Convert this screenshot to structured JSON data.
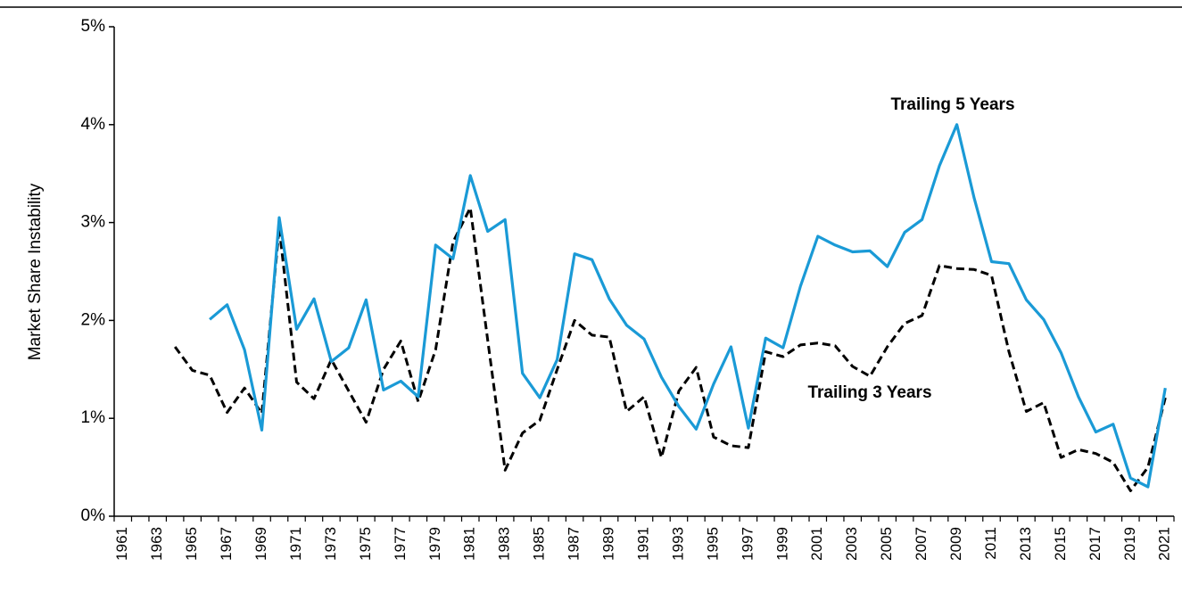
{
  "chart_data": {
    "type": "line",
    "y_label": "Market Share Instability",
    "categories": [
      "1961",
      null,
      "1963",
      null,
      "1965",
      null,
      "1967",
      null,
      "1969",
      null,
      "1971",
      null,
      "1973",
      null,
      "1975",
      null,
      "1977",
      null,
      "1979",
      null,
      "1981",
      null,
      "1983",
      null,
      "1985",
      null,
      "1987",
      null,
      "1989",
      null,
      "1991",
      null,
      "1993",
      null,
      "1995",
      null,
      "1997",
      null,
      "1999",
      null,
      "2001",
      null,
      "2003",
      null,
      "2005",
      null,
      "2007",
      null,
      "2009",
      null,
      "2011",
      null,
      "2013",
      null,
      "2015",
      null,
      "2017",
      null,
      "2019",
      null,
      "2021"
    ],
    "series": [
      {
        "name": "Trailing 5 Years",
        "color": "#1a9ad6",
        "dashed": false,
        "values": [
          null,
          null,
          null,
          null,
          null,
          2.01,
          2.16,
          1.7,
          0.88,
          3.05,
          1.91,
          2.22,
          1.58,
          1.72,
          2.21,
          1.29,
          1.38,
          1.22,
          2.77,
          2.63,
          3.48,
          2.91,
          3.03,
          1.46,
          1.21,
          1.6,
          2.68,
          2.62,
          2.22,
          1.95,
          1.81,
          1.42,
          1.12,
          0.89,
          1.35,
          1.73,
          0.9,
          1.82,
          1.72,
          2.35,
          2.86,
          2.77,
          2.7,
          2.71,
          2.55,
          2.9,
          3.03,
          3.58,
          4.0,
          3.25,
          2.6,
          2.58,
          2.21,
          2.01,
          1.67,
          1.22,
          0.86,
          0.94,
          0.39,
          0.3,
          1.31
        ]
      },
      {
        "name": "Trailing 3 Years",
        "color": "#000000",
        "dashed": true,
        "values": [
          null,
          null,
          null,
          1.73,
          1.49,
          1.44,
          1.06,
          1.31,
          1.05,
          2.95,
          1.37,
          1.2,
          1.6,
          1.28,
          0.96,
          1.5,
          1.79,
          1.17,
          1.7,
          2.8,
          3.15,
          1.8,
          0.47,
          0.85,
          0.98,
          1.5,
          2.0,
          1.85,
          1.83,
          1.07,
          1.22,
          0.6,
          1.28,
          1.52,
          0.81,
          0.72,
          0.7,
          1.68,
          1.63,
          1.75,
          1.77,
          1.74,
          1.53,
          1.43,
          1.73,
          1.97,
          2.05,
          2.56,
          2.53,
          2.52,
          2.46,
          1.68,
          1.07,
          1.16,
          0.6,
          0.68,
          0.64,
          0.55,
          0.26,
          0.5,
          1.21
        ]
      }
    ],
    "ylim": [
      0,
      5
    ],
    "yticks": [
      {
        "value": 0,
        "label": "0%"
      },
      {
        "value": 1,
        "label": "1%"
      },
      {
        "value": 2,
        "label": "2%"
      },
      {
        "value": 3,
        "label": "3%"
      },
      {
        "value": 4,
        "label": "4%"
      },
      {
        "value": 5,
        "label": "5%"
      }
    ],
    "grid": false
  }
}
